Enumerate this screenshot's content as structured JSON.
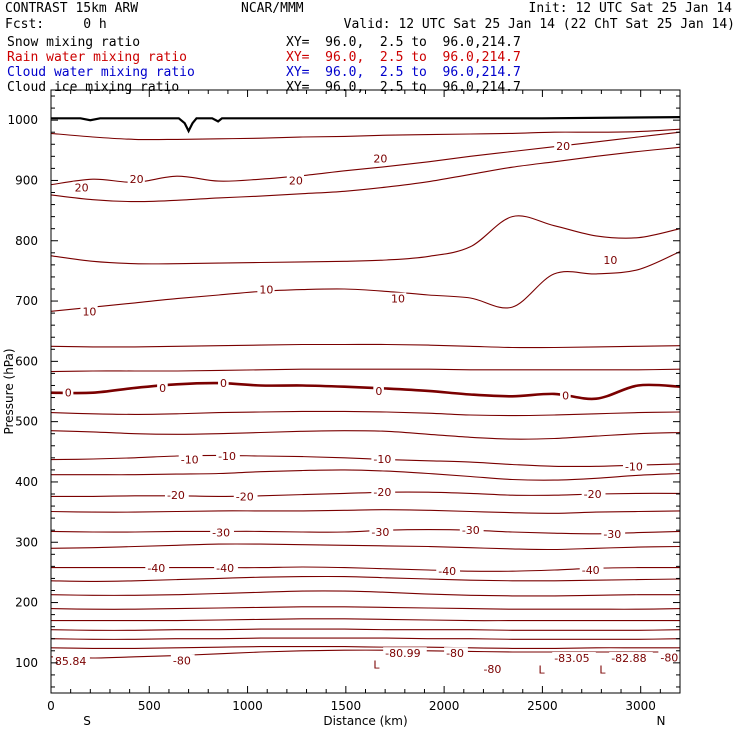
{
  "header": {
    "title": "CONTRAST 15km ARW",
    "center": "NCAR/MMM",
    "init": "Init: 12 UTC Sat 25 Jan 14",
    "fcst": "Fcst:     0 h",
    "valid": "Valid: 12 UTC Sat 25 Jan 14 (22 ChT Sat 25 Jan 14)"
  },
  "fields": [
    {
      "name": "Snow mixing ratio",
      "xy": "XY=  96.0,  2.5 to  96.0,214.7",
      "color": "#000000"
    },
    {
      "name": "Rain water mixing ratio",
      "xy": "XY=  96.0,  2.5 to  96.0,214.7",
      "color": "#cc0000"
    },
    {
      "name": "Cloud water mixing ratio",
      "xy": "XY=  96.0,  2.5 to  96.0,214.7",
      "color": "#0000cc"
    },
    {
      "name": "Cloud ice mixing ratio",
      "xy": "XY=  96.0,  2.5 to  96.0,214.7",
      "color": "#000000"
    }
  ],
  "chart_data": {
    "type": "line",
    "xlabel": "Distance (km)",
    "ylabel": "Pressure (hPa)",
    "xlim": [
      0,
      3200
    ],
    "ylim": [
      1050,
      50
    ],
    "x_ticks": [
      0,
      500,
      1000,
      1500,
      2000,
      2500,
      3000
    ],
    "y_ticks": [
      100,
      200,
      300,
      400,
      500,
      600,
      700,
      800,
      900,
      1000
    ],
    "x_end_labels": {
      "left": "S",
      "right": "N"
    },
    "contour_color": "#7a0000",
    "contour_labels": [
      {
        "text": "85.84",
        "x": 20,
        "p": 103
      },
      {
        "text": "-80",
        "x": 620,
        "p": 104
      },
      {
        "text": "L",
        "x": 1640,
        "p": 97
      },
      {
        "text": "-80.99",
        "x": 1700,
        "p": 116
      },
      {
        "text": "-80",
        "x": 2010,
        "p": 116
      },
      {
        "text": "-80",
        "x": 2200,
        "p": 90
      },
      {
        "text": "L",
        "x": 2480,
        "p": 89
      },
      {
        "text": "-83.05",
        "x": 2560,
        "p": 108
      },
      {
        "text": "L",
        "x": 2790,
        "p": 89
      },
      {
        "text": "-82.88",
        "x": 2850,
        "p": 108
      },
      {
        "text": "-80",
        "x": 3100,
        "p": 109
      },
      {
        "text": "-40",
        "x": 490,
        "p": 257
      },
      {
        "text": "-40",
        "x": 840,
        "p": 257
      },
      {
        "text": "-40",
        "x": 1970,
        "p": 252
      },
      {
        "text": "-40",
        "x": 2700,
        "p": 254
      },
      {
        "text": "-30",
        "x": 820,
        "p": 316
      },
      {
        "text": "-30",
        "x": 1630,
        "p": 317
      },
      {
        "text": "-30",
        "x": 2090,
        "p": 320
      },
      {
        "text": "-30",
        "x": 2810,
        "p": 314
      },
      {
        "text": "-20",
        "x": 590,
        "p": 378
      },
      {
        "text": "-20",
        "x": 940,
        "p": 376
      },
      {
        "text": "-20",
        "x": 1640,
        "p": 383
      },
      {
        "text": "-20",
        "x": 2710,
        "p": 380
      },
      {
        "text": "-10",
        "x": 660,
        "p": 437
      },
      {
        "text": "-10",
        "x": 850,
        "p": 443
      },
      {
        "text": "-10",
        "x": 1640,
        "p": 438
      },
      {
        "text": "-10",
        "x": 2920,
        "p": 426
      },
      {
        "text": "0",
        "x": 70,
        "p": 548
      },
      {
        "text": "0",
        "x": 550,
        "p": 556
      },
      {
        "text": "0",
        "x": 860,
        "p": 564
      },
      {
        "text": "0",
        "x": 1650,
        "p": 551
      },
      {
        "text": "0",
        "x": 2600,
        "p": 543
      },
      {
        "text": "10",
        "x": 160,
        "p": 683
      },
      {
        "text": "10",
        "x": 1060,
        "p": 719
      },
      {
        "text": "10",
        "x": 1730,
        "p": 704
      },
      {
        "text": "10",
        "x": 2810,
        "p": 768
      },
      {
        "text": "20",
        "x": 120,
        "p": 888
      },
      {
        "text": "20",
        "x": 400,
        "p": 902
      },
      {
        "text": "20",
        "x": 1210,
        "p": 900
      },
      {
        "text": "20",
        "x": 1640,
        "p": 936
      },
      {
        "text": "20",
        "x": 2570,
        "p": 957
      }
    ],
    "contours": [
      {
        "p": [
          110,
          108,
          110,
          112,
          115,
          118,
          120,
          121,
          121,
          120,
          119,
          118,
          118,
          118,
          118,
          118
        ]
      },
      {
        "p": [
          125,
          124,
          124,
          125,
          126,
          127,
          127,
          127,
          126,
          126,
          125,
          124,
          124,
          125,
          125,
          125
        ]
      },
      {
        "p": [
          140,
          139,
          139,
          140,
          140,
          141,
          141,
          141,
          141,
          140,
          140,
          139,
          139,
          139,
          139,
          140
        ]
      },
      {
        "p": [
          155,
          154,
          154,
          155,
          155,
          156,
          156,
          156,
          155,
          155,
          155,
          154,
          154,
          154,
          154,
          155
        ]
      },
      {
        "p": [
          170,
          170,
          170,
          170,
          171,
          172,
          173,
          173,
          172,
          171,
          170,
          170,
          170,
          170,
          170,
          170
        ]
      },
      {
        "p": [
          190,
          189,
          189,
          190,
          191,
          192,
          193,
          193,
          192,
          191,
          190,
          189,
          189,
          189,
          189,
          190
        ]
      },
      {
        "p": [
          213,
          212,
          212,
          213,
          215,
          217,
          219,
          219,
          217,
          214,
          212,
          211,
          211,
          212,
          213,
          213
        ]
      },
      {
        "p": [
          236,
          235,
          236,
          238,
          240,
          242,
          243,
          243,
          241,
          239,
          237,
          236,
          236,
          237,
          238,
          239
        ]
      },
      {
        "p": [
          258,
          258,
          258,
          258,
          258,
          258,
          259,
          258,
          256,
          254,
          252,
          252,
          254,
          257,
          258,
          258
        ]
      },
      {
        "p": [
          290,
          291,
          293,
          295,
          297,
          297,
          296,
          295,
          294,
          293,
          291,
          289,
          288,
          290,
          292,
          293
        ]
      },
      {
        "p": [
          318,
          317,
          317,
          318,
          318,
          318,
          317,
          317,
          320,
          321,
          320,
          317,
          315,
          314,
          316,
          318
        ]
      },
      {
        "p": [
          351,
          350,
          350,
          351,
          352,
          352,
          352,
          353,
          354,
          353,
          351,
          349,
          348,
          350,
          351,
          352
        ]
      },
      {
        "p": [
          376,
          376,
          377,
          377,
          376,
          377,
          379,
          381,
          383,
          383,
          381,
          378,
          378,
          380,
          381,
          381
        ]
      },
      {
        "p": [
          412,
          412,
          412,
          413,
          414,
          417,
          419,
          420,
          418,
          414,
          409,
          404,
          403,
          406,
          411,
          414
        ]
      },
      {
        "p": [
          437,
          438,
          440,
          443,
          444,
          443,
          442,
          440,
          437,
          435,
          433,
          429,
          426,
          426,
          428,
          430
        ]
      },
      {
        "p": [
          485,
          483,
          480,
          479,
          480,
          482,
          484,
          485,
          484,
          479,
          474,
          471,
          472,
          476,
          480,
          482
        ]
      },
      {
        "p": [
          515,
          513,
          512,
          513,
          515,
          516,
          517,
          517,
          516,
          514,
          511,
          510,
          511,
          513,
          515,
          516
        ]
      },
      {
        "p": [
          548,
          548,
          556,
          562,
          564,
          560,
          560,
          558,
          555,
          551,
          545,
          542,
          546,
          538,
          560,
          558
        ],
        "width": 2.6
      },
      {
        "p": [
          583,
          584,
          584,
          584,
          585,
          586,
          587,
          587,
          587,
          587,
          586,
          586,
          586,
          586,
          586,
          587
        ]
      },
      {
        "p": [
          625,
          624,
          624,
          625,
          626,
          627,
          628,
          628,
          628,
          627,
          625,
          623,
          623,
          624,
          625,
          626
        ]
      },
      {
        "p": [
          683,
          690,
          697,
          704,
          710,
          716,
          719,
          720,
          716,
          710,
          705,
          690,
          745,
          745,
          752,
          782
        ]
      },
      {
        "p": [
          775,
          766,
          762,
          762,
          763,
          764,
          765,
          766,
          768,
          774,
          790,
          840,
          825,
          808,
          805,
          820
        ]
      },
      {
        "p": [
          876,
          868,
          865,
          867,
          871,
          874,
          878,
          882,
          889,
          898,
          910,
          922,
          931,
          940,
          948,
          955
        ]
      },
      {
        "p": [
          893,
          902,
          897,
          907,
          899,
          902,
          908,
          916,
          923,
          931,
          940,
          948,
          956,
          964,
          972,
          980
        ]
      },
      {
        "p": [
          978,
          972,
          968,
          968,
          969,
          970,
          972,
          973,
          975,
          976,
          977,
          978,
          980,
          980,
          981,
          985
        ]
      }
    ],
    "terrain": {
      "x": [
        0,
        150,
        200,
        250,
        650,
        680,
        700,
        720,
        740,
        820,
        850,
        870,
        2500,
        3200
      ],
      "p": [
        1003,
        1003,
        1000,
        1003,
        1003,
        995,
        982,
        995,
        1003,
        1003,
        998,
        1003,
        1003,
        1005
      ]
    }
  }
}
